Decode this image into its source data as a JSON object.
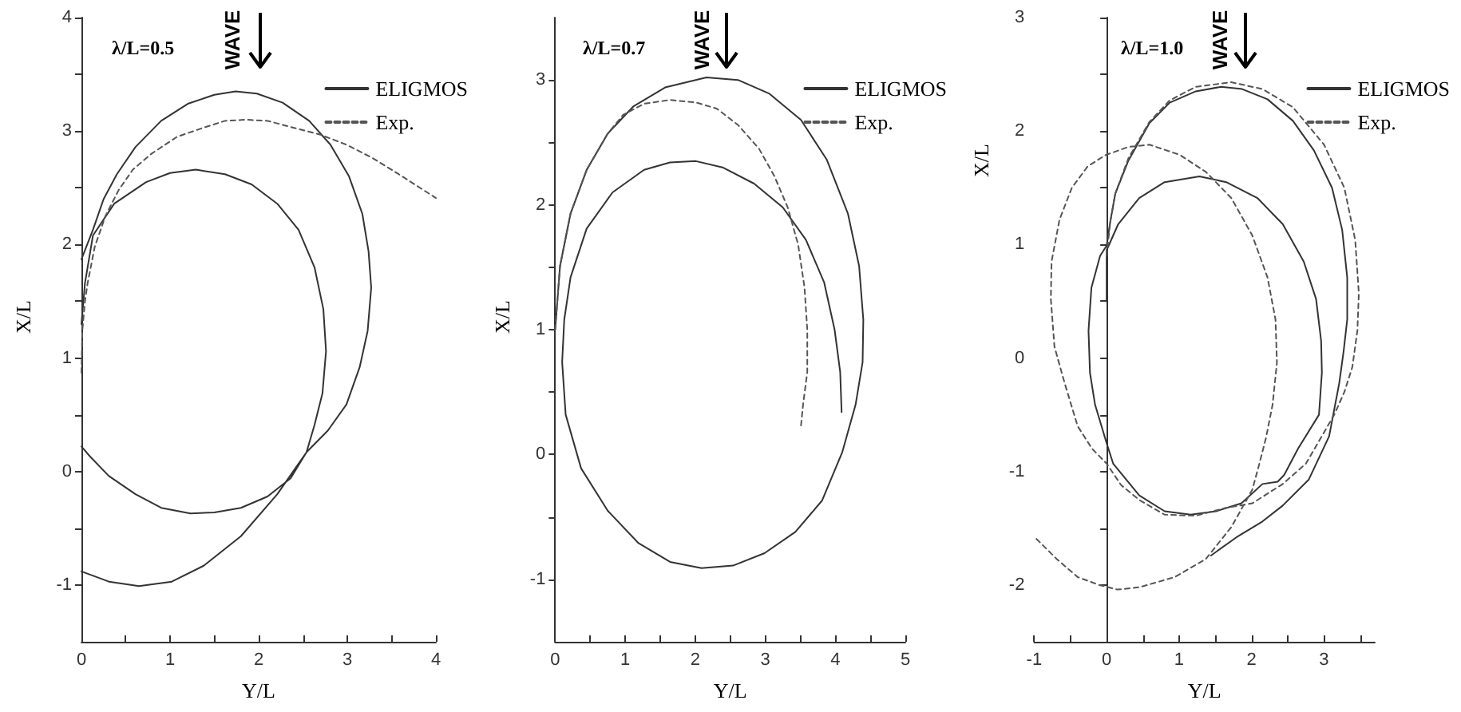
{
  "chart_data": [
    {
      "type": "line",
      "title": "λ/L=0.5",
      "xlabel": "Y/L",
      "ylabel": "X/L",
      "annotations": [
        "WAVE"
      ],
      "legend": "top right",
      "xlim": [
        0,
        4
      ],
      "ylim": [
        -1.5,
        4
      ],
      "xticks": [
        0,
        {
          "value": 0.5,
          "label": null
        },
        1,
        {
          "value": 1.5,
          "label": null
        },
        2,
        {
          "value": 2.5,
          "label": null
        },
        3,
        {
          "value": 3.5,
          "label": null
        },
        4
      ],
      "yticks": [
        -1,
        {
          "value": -0.5,
          "label": null
        },
        0,
        {
          "value": 0.5,
          "label": null
        },
        1,
        {
          "value": 1.5,
          "label": null
        },
        2,
        {
          "value": 2.5,
          "label": null
        },
        3,
        {
          "value": 3.5,
          "label": null
        },
        4
      ],
      "series": [
        {
          "name": "ELIGMOS",
          "color": "#333333",
          "line_style": "solid",
          "x": [
            0,
            0.13,
            0.25,
            0.4,
            0.61,
            0.9,
            1.2,
            1.5,
            1.74,
            1.98,
            2.27,
            2.57,
            2.81,
            3.02,
            3.17,
            3.24,
            3.27,
            3.23,
            3.14,
            2.99,
            2.78,
            2.54,
            2.21,
            1.8,
            1.38,
            1.02,
            0.65,
            0.31,
            0,
            null,
            0,
            0.04,
            0.13,
            0.37,
            0.73,
            1.0,
            1.29,
            1.62,
            1.92,
            2.21,
            2.45,
            2.63,
            2.73,
            2.76,
            2.72,
            2.63,
            2.54,
            2.36,
            2.1,
            1.8,
            1.5,
            1.23,
            0.9,
            0.61,
            0.31,
            0.1,
            0
          ],
          "values": [
            1.87,
            2.13,
            2.4,
            2.62,
            2.86,
            3.09,
            3.24,
            3.32,
            3.35,
            3.33,
            3.25,
            3.09,
            2.88,
            2.6,
            2.27,
            1.94,
            1.62,
            1.24,
            0.92,
            0.59,
            0.36,
            0.17,
            -0.2,
            -0.57,
            -0.83,
            -0.97,
            -1.01,
            -0.97,
            -0.88,
            null,
            1.3,
            1.66,
            2.08,
            2.36,
            2.55,
            2.63,
            2.66,
            2.62,
            2.53,
            2.36,
            2.13,
            1.8,
            1.43,
            1.06,
            0.69,
            0.41,
            0.17,
            -0.06,
            -0.22,
            -0.32,
            -0.36,
            -0.37,
            -0.32,
            -0.2,
            -0.04,
            0.13,
            0.22
          ]
        },
        {
          "name": "Exp.",
          "color": "#555555",
          "line_style": "dashed",
          "x": [
            0,
            0.01,
            0.04,
            0.07,
            0.15,
            0.27,
            0.42,
            0.58,
            0.79,
            1.08,
            1.38,
            1.62,
            1.86,
            2.1,
            2.39,
            2.69,
            2.99,
            3.29,
            3.58,
            3.82,
            4.0
          ],
          "values": [
            0.87,
            1.24,
            1.5,
            1.66,
            1.98,
            2.25,
            2.48,
            2.66,
            2.8,
            2.95,
            3.03,
            3.09,
            3.1,
            3.09,
            3.03,
            2.97,
            2.88,
            2.76,
            2.62,
            2.5,
            2.41
          ]
        }
      ]
    },
    {
      "type": "line",
      "title": "λ/L=0.7",
      "xlabel": "Y/L",
      "ylabel": "X/L",
      "annotations": [
        "WAVE"
      ],
      "legend": "top right",
      "xlim": [
        0,
        5
      ],
      "ylim": [
        -1.5,
        3.5
      ],
      "xticks": [
        0,
        {
          "value": 0.5,
          "label": null
        },
        1,
        {
          "value": 1.5,
          "label": null
        },
        2,
        {
          "value": 2.5,
          "label": null
        },
        3,
        {
          "value": 3.5,
          "label": null
        },
        4,
        {
          "value": 4.5,
          "label": null
        },
        5
      ],
      "yticks": [
        -1,
        {
          "value": -0.5,
          "label": null
        },
        0,
        {
          "value": 0.5,
          "label": null
        },
        1,
        {
          "value": 1.5,
          "label": null
        },
        2,
        {
          "value": 2.5,
          "label": null
        },
        3
      ],
      "series": [
        {
          "name": "ELIGMOS",
          "color": "#333333",
          "line_style": "solid",
          "x": [
            0,
            0.07,
            0.22,
            0.45,
            0.75,
            1.12,
            1.57,
            2.16,
            2.61,
            3.06,
            3.51,
            3.88,
            4.18,
            4.34,
            4.4,
            4.39,
            4.29,
            4.1,
            3.81,
            3.43,
            2.99,
            2.54,
            2.09,
            1.64,
            1.19,
            0.75,
            0.37,
            0.15,
            0.1,
            0.13,
            0.22,
            0.45,
            0.82,
            1.27,
            1.64,
            2.01,
            2.39,
            2.84,
            3.25,
            3.58,
            3.84,
            3.99,
            4.07,
            4.09
          ],
          "values": [
            1.0,
            1.51,
            1.93,
            2.28,
            2.57,
            2.79,
            2.94,
            3.02,
            3.0,
            2.89,
            2.68,
            2.36,
            1.93,
            1.51,
            1.08,
            0.74,
            0.4,
            0.02,
            -0.37,
            -0.62,
            -0.79,
            -0.89,
            -0.91,
            -0.86,
            -0.71,
            -0.45,
            -0.11,
            0.32,
            0.74,
            1.08,
            1.42,
            1.81,
            2.1,
            2.28,
            2.34,
            2.35,
            2.3,
            2.17,
            1.98,
            1.72,
            1.38,
            1.0,
            0.66,
            0.34
          ]
        },
        {
          "name": "Exp.",
          "color": "#555555",
          "line_style": "dashed",
          "x": [
            0,
            0.07,
            0.22,
            0.45,
            0.75,
            0.97,
            1.27,
            1.64,
            2.01,
            2.31,
            2.61,
            2.91,
            3.13,
            3.32,
            3.47,
            3.56,
            3.6,
            3.6,
            3.54,
            3.51
          ],
          "values": [
            1.0,
            1.51,
            1.93,
            2.28,
            2.57,
            2.72,
            2.81,
            2.84,
            2.82,
            2.77,
            2.64,
            2.45,
            2.23,
            1.98,
            1.68,
            1.34,
            1.0,
            0.66,
            0.4,
            0.23
          ]
        }
      ]
    },
    {
      "type": "line",
      "title": "λ/L=1.0",
      "xlabel": "Y/L",
      "ylabel": "X/L",
      "annotations": [
        "WAVE"
      ],
      "legend": "top right",
      "xlim": [
        -1,
        3.7
      ],
      "ylim": [
        -2.5,
        3
      ],
      "xticks": [
        -1,
        {
          "value": -0.5,
          "label": null
        },
        0,
        {
          "value": 0.5,
          "label": null
        },
        1,
        {
          "value": 1.5,
          "label": null
        },
        2,
        {
          "value": 2.5,
          "label": null
        },
        3,
        {
          "value": 3.5,
          "label": null
        }
      ],
      "yticks": [
        -2,
        {
          "value": -1.5,
          "label": null
        },
        -1,
        {
          "value": -0.5,
          "label": null
        },
        0,
        {
          "value": 0.5,
          "label": null
        },
        1,
        {
          "value": 1.5,
          "label": null
        },
        2,
        {
          "value": 2.5,
          "label": null
        },
        3
      ],
      "series": [
        {
          "name": "ELIGMOS",
          "color": "#333333",
          "line_style": "solid",
          "x": [
            0,
            0,
            0.16,
            0.45,
            0.8,
            1.28,
            1.65,
            2.08,
            2.43,
            2.72,
            2.89,
            2.96,
            2.97,
            2.93,
            2.64,
            2.45,
            2.36,
            2.15,
            1.86,
            1.51,
            1.16,
            0.8,
            0.45,
            0.09,
            0,
            -0.16,
            -0.23,
            -0.25,
            -0.21,
            -0.09,
            0,
            0.05,
            0.12,
            0.3,
            0.59,
            0.87,
            1.23,
            1.58,
            1.87,
            2.22,
            2.57,
            2.86,
            3.11,
            3.25,
            3.32,
            3.32,
            3.27,
            3.21,
            3.07,
            2.79,
            2.43,
            2.15,
            1.79,
            1.44
          ],
          "values": [
            0.5,
            0.95,
            1.18,
            1.41,
            1.55,
            1.6,
            1.55,
            1.41,
            1.18,
            0.85,
            0.52,
            0.15,
            -0.13,
            -0.5,
            -0.8,
            -1.03,
            -1.09,
            -1.11,
            -1.28,
            -1.35,
            -1.38,
            -1.35,
            -1.21,
            -0.93,
            -0.75,
            -0.41,
            -0.13,
            0.24,
            0.62,
            0.9,
            0.99,
            1.2,
            1.45,
            1.74,
            2.07,
            2.25,
            2.35,
            2.39,
            2.37,
            2.28,
            2.09,
            1.83,
            1.5,
            1.13,
            0.71,
            0.34,
            0.06,
            -0.22,
            -0.69,
            -1.07,
            -1.3,
            -1.44,
            -1.58,
            -1.74
          ]
        },
        {
          "name": "Exp.",
          "color": "#555555",
          "line_style": "dashed",
          "x": [
            0,
            0.05,
            0.12,
            0.3,
            0.59,
            0.87,
            1.23,
            1.72,
            2.15,
            2.57,
            3.0,
            3.28,
            3.43,
            3.48,
            3.46,
            3.39,
            3.28,
            3.14,
            2.75,
            2.43,
            2.01,
            1.65,
            1.23,
            0.8,
            0.45,
            0.2,
            0,
            -0.2,
            -0.4,
            -0.58,
            -0.72,
            -0.77,
            -0.76,
            -0.65,
            -0.48,
            -0.26,
            -0.01,
            0.3,
            0.59,
            1.01,
            1.37,
            1.72,
            2.01,
            2.22,
            2.33,
            2.35,
            2.29,
            2.2,
            2.1,
            2.01,
            1.72,
            1.37,
            0.94,
            0.45,
            0.15,
            -0.1,
            -0.4,
            -0.69,
            -0.99
          ],
          "values": [
            0.9,
            1.2,
            1.45,
            1.76,
            2.08,
            2.27,
            2.39,
            2.43,
            2.37,
            2.21,
            1.88,
            1.5,
            1.04,
            0.57,
            0.24,
            -0.08,
            -0.3,
            -0.5,
            -0.93,
            -1.11,
            -1.28,
            -1.32,
            -1.39,
            -1.38,
            -1.25,
            -1.12,
            -0.93,
            -0.8,
            -0.6,
            -0.22,
            0.1,
            0.52,
            0.85,
            1.22,
            1.5,
            1.69,
            1.79,
            1.86,
            1.88,
            1.79,
            1.64,
            1.41,
            1.08,
            0.71,
            0.34,
            -0.04,
            -0.41,
            -0.7,
            -0.95,
            -1.16,
            -1.49,
            -1.77,
            -1.93,
            -2.02,
            -2.04,
            -2.0,
            -1.93,
            -1.77,
            -1.58
          ]
        }
      ]
    }
  ]
}
